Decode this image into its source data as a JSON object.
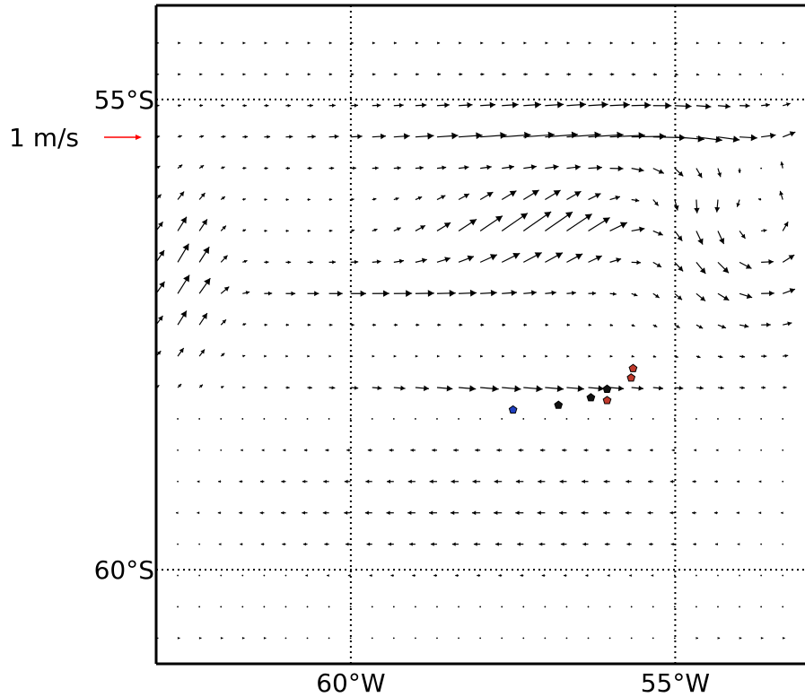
{
  "chart_data": {
    "type": "vector-field",
    "title": "",
    "x_axis": {
      "ticks": [
        {
          "value": -60,
          "label": "60°W"
        },
        {
          "value": -55,
          "label": "55°W"
        }
      ]
    },
    "y_axis": {
      "ticks": [
        {
          "value": -55,
          "label": "55°S"
        },
        {
          "value": -60,
          "label": "60°S"
        }
      ]
    },
    "xlim": [
      -63.0,
      -53.0
    ],
    "ylim": [
      -61.0,
      -54.0
    ],
    "grid": "dotted at labeled ticks",
    "colors": {
      "vectors": "#000000",
      "key_arrow": "#ff0000",
      "frame": "#000000"
    },
    "quiver_key": {
      "label": "1 m/s",
      "magnitude_ms": 1.0,
      "placement": "left of map, below 55°S"
    },
    "vector_field_grid": {
      "lon_range": [
        -63.0,
        -53.2
      ],
      "lat_range": [
        -54.4,
        -60.85
      ],
      "step_deg": 0.333
    },
    "markers": [
      {
        "lon": -57.5,
        "lat": -58.3,
        "color": "#1f3fbf"
      },
      {
        "lon": -56.8,
        "lat": -58.25,
        "color": "#111111"
      },
      {
        "lon": -56.3,
        "lat": -58.17,
        "color": "#111111"
      },
      {
        "lon": -56.05,
        "lat": -58.08,
        "color": "#111111"
      },
      {
        "lon": -56.05,
        "lat": -58.2,
        "color": "#c0392b"
      },
      {
        "lon": -55.68,
        "lat": -57.96,
        "color": "#c0392b"
      },
      {
        "lon": -55.65,
        "lat": -57.86,
        "color": "#c0392b"
      }
    ]
  }
}
